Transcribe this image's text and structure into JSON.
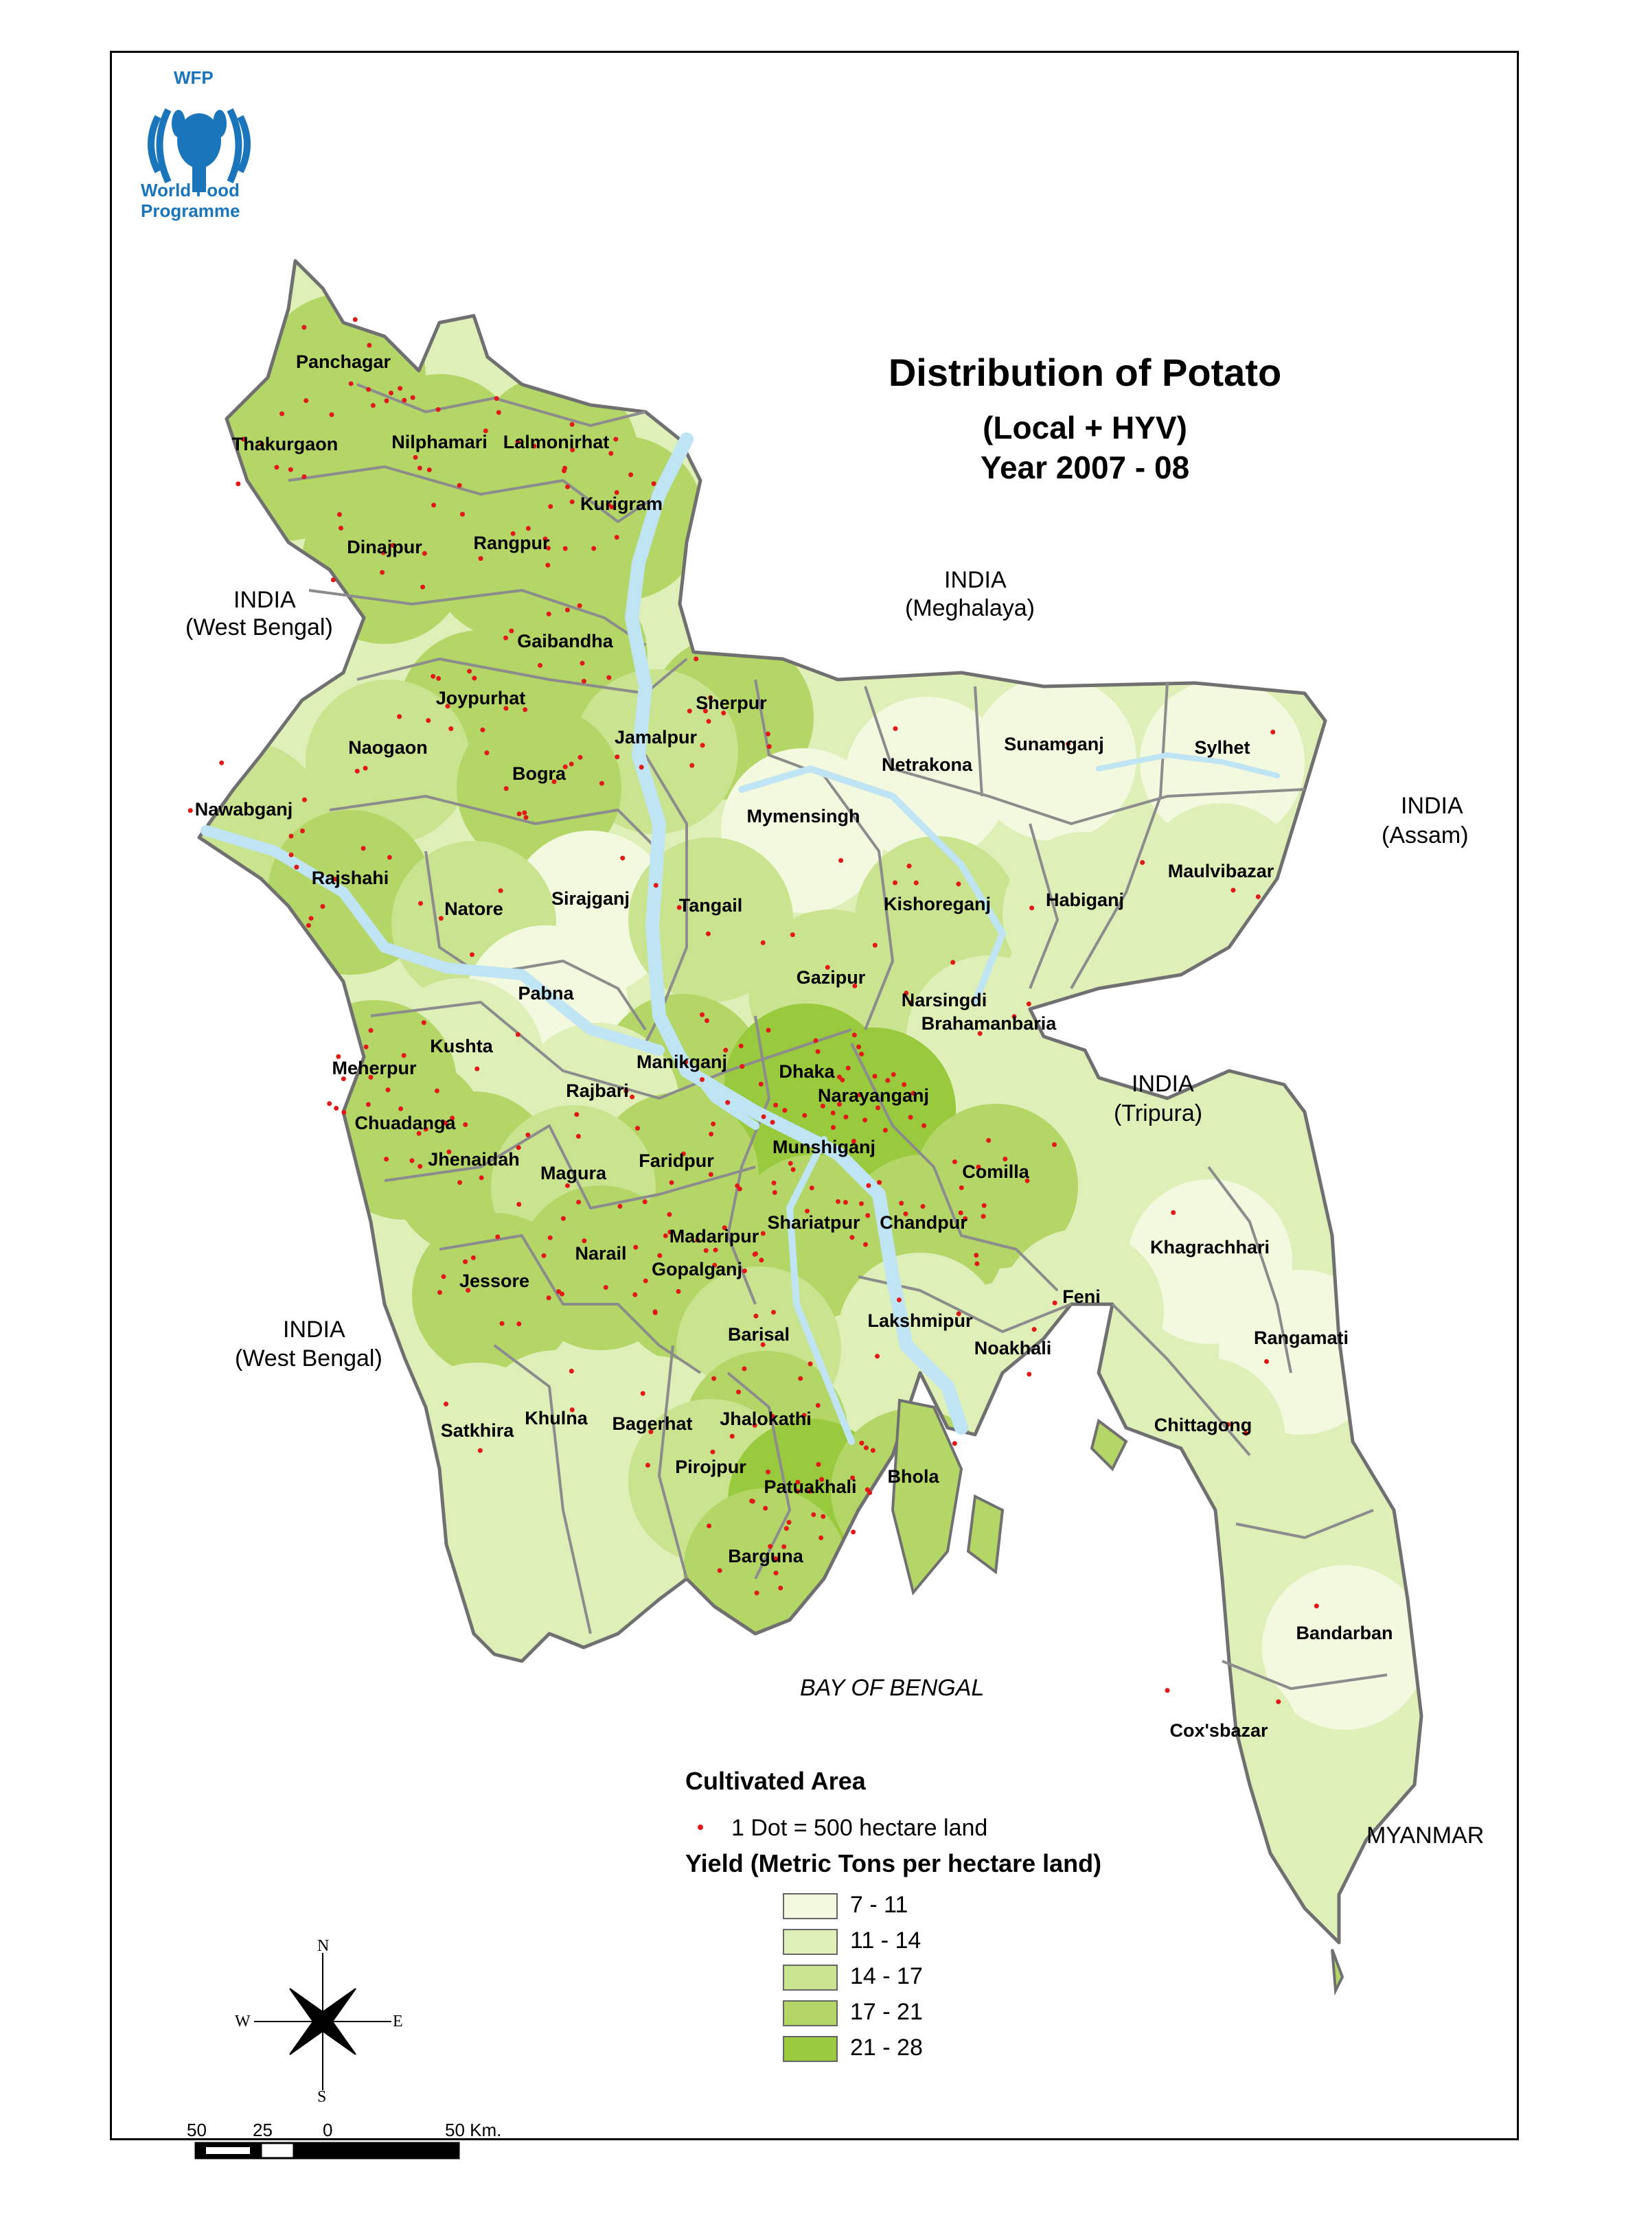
{
  "logo": {
    "acronym": "WFP",
    "line1": "World Food",
    "line2": "Programme"
  },
  "title": {
    "line1": "Distribution of Potato",
    "line2": "(Local + HYV)",
    "line3": "Year 2007 - 08"
  },
  "neighbors": {
    "india_wb_north_1": "INDIA",
    "india_wb_north_2": "(West Bengal)",
    "india_meg_1": "INDIA",
    "india_meg_2": "(Meghalaya)",
    "india_assam_1": "INDIA",
    "india_assam_2": "(Assam)",
    "india_tripura_1": "INDIA",
    "india_tripura_2": "(Tripura)",
    "india_wb_south_1": "INDIA",
    "india_wb_south_2": "(West Bengal)",
    "myanmar": "MYANMAR",
    "bay": "BAY OF BENGAL"
  },
  "districts": [
    {
      "name": "Panchagar",
      "yield_class": "17 - 21"
    },
    {
      "name": "Thakurgaon",
      "yield_class": "17 - 21"
    },
    {
      "name": "Nilphamari",
      "yield_class": "17 - 21"
    },
    {
      "name": "Lalmonirhat",
      "yield_class": "17 - 21"
    },
    {
      "name": "Kurigram",
      "yield_class": "17 - 21"
    },
    {
      "name": "Dinajpur",
      "yield_class": "17 - 21"
    },
    {
      "name": "Rangpur",
      "yield_class": "17 - 21"
    },
    {
      "name": "Gaibandha",
      "yield_class": "17 - 21"
    },
    {
      "name": "Joypurhat",
      "yield_class": "17 - 21"
    },
    {
      "name": "Sherpur",
      "yield_class": "17 - 21"
    },
    {
      "name": "Naogaon",
      "yield_class": "14 - 17"
    },
    {
      "name": "Jamalpur",
      "yield_class": "14 - 17"
    },
    {
      "name": "Bogra",
      "yield_class": "17 - 21"
    },
    {
      "name": "Netrakona",
      "yield_class": "7 - 11"
    },
    {
      "name": "Sunamganj",
      "yield_class": "7 - 11"
    },
    {
      "name": "Sylhet",
      "yield_class": "7 - 11"
    },
    {
      "name": "Nawabganj",
      "yield_class": "14 - 17"
    },
    {
      "name": "Mymensingh",
      "yield_class": "7 - 11"
    },
    {
      "name": "Rajshahi",
      "yield_class": "17 - 21"
    },
    {
      "name": "Sirajganj",
      "yield_class": "7 - 11"
    },
    {
      "name": "Natore",
      "yield_class": "14 - 17"
    },
    {
      "name": "Tangail",
      "yield_class": "14 - 17"
    },
    {
      "name": "Kishoreganj",
      "yield_class": "14 - 17"
    },
    {
      "name": "Habiganj",
      "yield_class": "11 - 14"
    },
    {
      "name": "Maulvibazar",
      "yield_class": "11 - 14"
    },
    {
      "name": "Gazipur",
      "yield_class": "14 - 17"
    },
    {
      "name": "Narsingdi",
      "yield_class": "14 - 17"
    },
    {
      "name": "Pabna",
      "yield_class": "7 - 11"
    },
    {
      "name": "Brahamanbaria",
      "yield_class": "11 - 14"
    },
    {
      "name": "Kushta",
      "yield_class": "11 - 14"
    },
    {
      "name": "Manikganj",
      "yield_class": "17 - 21"
    },
    {
      "name": "Dhaka",
      "yield_class": "21 - 28"
    },
    {
      "name": "Meherpur",
      "yield_class": "17 - 21"
    },
    {
      "name": "Rajbari",
      "yield_class": "11 - 14"
    },
    {
      "name": "Narayanganj",
      "yield_class": "21 - 28"
    },
    {
      "name": "Chuadanga",
      "yield_class": "17 - 21"
    },
    {
      "name": "Munshiganj",
      "yield_class": "21 - 28"
    },
    {
      "name": "Jhenaidah",
      "yield_class": "17 - 21"
    },
    {
      "name": "Faridpur",
      "yield_class": "17 - 21"
    },
    {
      "name": "Magura",
      "yield_class": "14 - 17"
    },
    {
      "name": "Comilla",
      "yield_class": "17 - 21"
    },
    {
      "name": "Shariatpur",
      "yield_class": "17 - 21"
    },
    {
      "name": "Chandpur",
      "yield_class": "17 - 21"
    },
    {
      "name": "Madaripur",
      "yield_class": "17 - 21"
    },
    {
      "name": "Khagrachhari",
      "yield_class": "7 - 11"
    },
    {
      "name": "Narail",
      "yield_class": "17 - 21"
    },
    {
      "name": "Gopalganj",
      "yield_class": "17 - 21"
    },
    {
      "name": "Jessore",
      "yield_class": "17 - 21"
    },
    {
      "name": "Feni",
      "yield_class": "11 - 14"
    },
    {
      "name": "Lakshmipur",
      "yield_class": "11 - 14"
    },
    {
      "name": "Barisal",
      "yield_class": "14 - 17"
    },
    {
      "name": "Noakhali",
      "yield_class": "11 - 14"
    },
    {
      "name": "Rangamati",
      "yield_class": "7 - 11"
    },
    {
      "name": "Satkhira",
      "yield_class": "11 - 14"
    },
    {
      "name": "Khulna",
      "yield_class": "11 - 14"
    },
    {
      "name": "Bagerhat",
      "yield_class": "11 - 14"
    },
    {
      "name": "Jhalokathi",
      "yield_class": "17 - 21"
    },
    {
      "name": "Chittagong",
      "yield_class": "11 - 14"
    },
    {
      "name": "Pirojpur",
      "yield_class": "14 - 17"
    },
    {
      "name": "Patuakhali",
      "yield_class": "21 - 28"
    },
    {
      "name": "Bhola",
      "yield_class": "17 - 21"
    },
    {
      "name": "Barguna",
      "yield_class": "17 - 21"
    },
    {
      "name": "Bandarban",
      "yield_class": "7 - 11"
    },
    {
      "name": "Cox'sbazar",
      "yield_class": "11 - 14"
    }
  ],
  "legend": {
    "area_heading": "Cultivated Area",
    "dot_label": "1 Dot = 500 hectare land",
    "yield_heading": "Yield (Metric Tons per hectare land)",
    "classes": [
      {
        "label": "7 - 11",
        "color": "#f2f9de"
      },
      {
        "label": "11 - 14",
        "color": "#dfefb8"
      },
      {
        "label": "14 - 17",
        "color": "#c9e38f"
      },
      {
        "label": "17 - 21",
        "color": "#b3d667"
      },
      {
        "label": "21 - 28",
        "color": "#99c93c"
      }
    ],
    "dot_color": "#e11919"
  },
  "compass": {
    "n": "N",
    "s": "S",
    "e": "E",
    "w": "W"
  },
  "scalebar": {
    "t1": "50",
    "t2": "25",
    "t3": "0",
    "t4": "50 Km."
  },
  "colors": {
    "river": "#bfe4f4",
    "district_border": "#8c8c8c",
    "country_border": "#707070"
  }
}
